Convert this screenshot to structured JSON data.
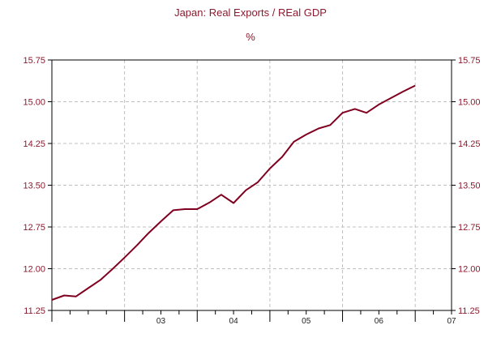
{
  "chart_data": {
    "type": "line",
    "title": "Japan: Real Exports / REal GDP",
    "subtitle": "%",
    "xlabel": "",
    "ylabel": "",
    "ylim": [
      11.25,
      15.75
    ],
    "yticks": [
      "15.75",
      "15.00",
      "14.25",
      "13.50",
      "12.75",
      "12.00",
      "11.25"
    ],
    "ytick_values": [
      15.75,
      15.0,
      14.25,
      13.5,
      12.75,
      12.0,
      11.25
    ],
    "xlim": [
      2002.0,
      2007.5
    ],
    "xtick_labels": [
      "03",
      "04",
      "05",
      "06",
      "07"
    ],
    "xtick_centers": [
      2003.5,
      2004.5,
      2005.5,
      2006.5,
      2007.5
    ],
    "grid": true,
    "dual_y_axis": true,
    "colors": {
      "line": "#800020",
      "text": "#8b1a2e",
      "grid": "#c0c0c0",
      "axis": "#000000"
    },
    "series": [
      {
        "x": [
          2002.0,
          2002.17,
          2002.33,
          2002.5,
          2002.67,
          2002.83,
          2003.0,
          2003.17,
          2003.33,
          2003.5,
          2003.67,
          2003.83,
          2004.0,
          2004.17,
          2004.33,
          2004.5,
          2004.67,
          2004.83,
          2005.0,
          2005.17,
          2005.33,
          2005.5,
          2005.67,
          2005.83,
          2006.0,
          2006.17,
          2006.33,
          2006.5,
          2006.83,
          2007.0
        ],
        "values": [
          11.44,
          11.52,
          11.5,
          11.65,
          11.8,
          11.99,
          12.2,
          12.42,
          12.64,
          12.85,
          13.05,
          13.07,
          13.07,
          13.19,
          13.33,
          13.18,
          13.41,
          13.55,
          13.8,
          14.01,
          14.28,
          14.41,
          14.52,
          14.58,
          14.8,
          14.87,
          14.8,
          14.95,
          15.18,
          15.29
        ]
      }
    ]
  }
}
